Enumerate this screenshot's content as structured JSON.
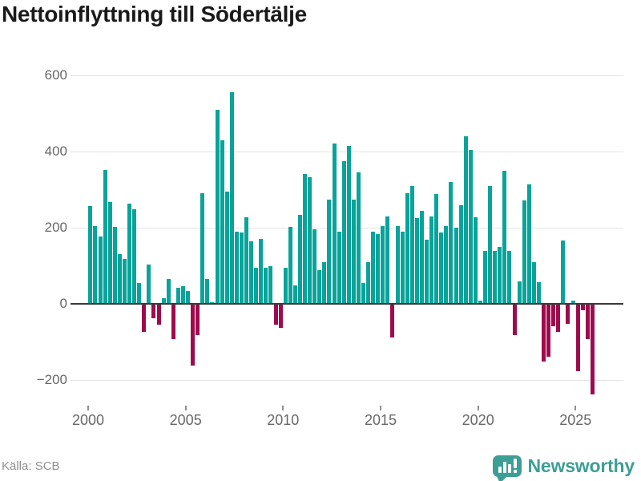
{
  "title": "Nettoinflyttning till Södertälje",
  "source": "Källa: SCB",
  "brand": {
    "name": "Newsworthy",
    "icon": "newsworthy-bubble-chart-icon",
    "color": "#3d9e95"
  },
  "colors": {
    "positive_bar": "#09a39a",
    "negative_bar": "#9e0b4d",
    "grid": "#e4e4e4",
    "zero_line": "#3a3a3a",
    "axis_text": "#686868",
    "title_text": "#1a1a1a",
    "source_text": "#8f8f8f"
  },
  "chart_data": {
    "type": "bar",
    "title": "Nettoinflyttning till Södertälje",
    "frequency": "quarterly",
    "start": "2000-Q1",
    "end": "2025-Q4",
    "grid": true,
    "legend": false,
    "ylim": [
      -260,
      620
    ],
    "y_ticks": [
      600,
      400,
      200,
      0,
      -200
    ],
    "y_tick_labels": [
      "600",
      "400",
      "200",
      "0",
      "−200"
    ],
    "x_ticks": [
      2000,
      2005,
      2010,
      2015,
      2020,
      2025
    ],
    "x_tick_labels": [
      "2000",
      "2005",
      "2010",
      "2015",
      "2020",
      "2025"
    ],
    "values": [
      258,
      205,
      178,
      351,
      267,
      202,
      132,
      118,
      263,
      248,
      56,
      -70,
      103,
      -35,
      -52,
      15,
      65,
      -90,
      42,
      48,
      34,
      -160,
      -80,
      290,
      65,
      5,
      510,
      430,
      295,
      555,
      190,
      188,
      227,
      165,
      95,
      170,
      95,
      100,
      -52,
      -60,
      95,
      202,
      49,
      235,
      342,
      332,
      196,
      90,
      110,
      274,
      421,
      189,
      375,
      414,
      274,
      345,
      55,
      110,
      190,
      183,
      204,
      230,
      -86,
      204,
      190,
      291,
      309,
      225,
      244,
      168,
      230,
      288,
      188,
      205,
      321,
      200,
      260,
      440,
      405,
      227,
      10,
      140,
      310,
      140,
      150,
      350,
      140,
      -80,
      60,
      273,
      315,
      110,
      58,
      -148,
      -136,
      -56,
      -70,
      166,
      -50,
      10,
      -175,
      -15,
      -90,
      -235
    ]
  }
}
